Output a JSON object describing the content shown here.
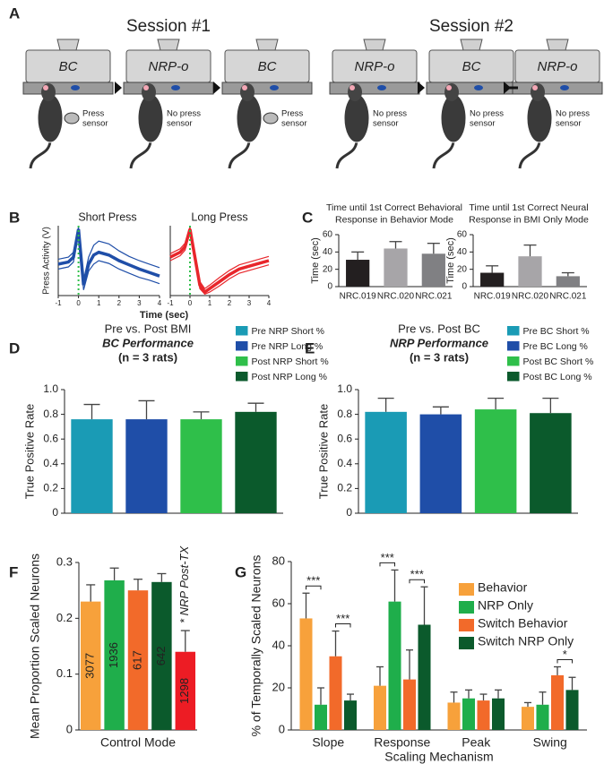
{
  "panel_labels": [
    "A",
    "B",
    "C",
    "D",
    "E",
    "F",
    "G"
  ],
  "panel_a": {
    "sessions": [
      "Session #1",
      "Session #2"
    ],
    "screens": [
      "BC",
      "NRP-o",
      "BC",
      "NRP-o",
      "BC",
      "NRP-o"
    ],
    "sensors": [
      [
        "Press",
        "sensor"
      ],
      [
        "No press",
        "sensor"
      ],
      [
        "Press",
        "sensor"
      ],
      [
        "No press",
        "sensor"
      ],
      [
        "No press",
        "sensor"
      ],
      [
        "No press",
        "sensor"
      ]
    ],
    "has_sensor": [
      true,
      false,
      true,
      false,
      false,
      false
    ]
  },
  "chart_data": [
    {
      "type": "line",
      "title": "Short Press",
      "ylabel": "Press Activity (V)",
      "xlabel": "Time (sec)",
      "x": [
        -1,
        -0.5,
        -0.25,
        0,
        0.25,
        0.5,
        0.75,
        1,
        1.5,
        2,
        2.5,
        3,
        3.5,
        4
      ],
      "xlim": [
        -1,
        4
      ],
      "xticks": [
        -1,
        0,
        1,
        2,
        3,
        4
      ],
      "ylim": [
        0,
        1
      ],
      "vline": 0,
      "vline_color": "#2fbf4a",
      "series": [
        {
          "color": "#1f4ea8",
          "values": [
            0.45,
            0.48,
            0.55,
            0.95,
            0.15,
            0.45,
            0.58,
            0.62,
            0.58,
            0.5,
            0.44,
            0.38,
            0.33,
            0.28
          ],
          "upper": [
            0.52,
            0.55,
            0.62,
            0.98,
            0.22,
            0.55,
            0.72,
            0.78,
            0.74,
            0.64,
            0.56,
            0.5,
            0.45,
            0.4
          ],
          "lower": [
            0.38,
            0.41,
            0.48,
            0.92,
            0.08,
            0.35,
            0.45,
            0.5,
            0.46,
            0.38,
            0.32,
            0.26,
            0.22,
            0.17
          ]
        }
      ]
    },
    {
      "type": "line",
      "title": "Long Press",
      "x": [
        -1,
        -0.5,
        -0.25,
        0,
        0.25,
        0.5,
        0.75,
        1,
        1.5,
        2,
        2.5,
        3,
        3.5,
        4
      ],
      "xlim": [
        -1,
        4
      ],
      "xticks": [
        -1,
        0,
        1,
        2,
        3,
        4
      ],
      "ylim": [
        0,
        1
      ],
      "vline": 0,
      "vline_color": "#2fbf4a",
      "series": [
        {
          "color": "#e8262b",
          "values": [
            0.55,
            0.62,
            0.7,
            0.95,
            0.55,
            0.15,
            0.05,
            0.1,
            0.2,
            0.3,
            0.38,
            0.42,
            0.46,
            0.5
          ],
          "upper": [
            0.6,
            0.67,
            0.75,
            0.98,
            0.6,
            0.2,
            0.1,
            0.15,
            0.26,
            0.36,
            0.44,
            0.48,
            0.52,
            0.56
          ],
          "lower": [
            0.5,
            0.57,
            0.65,
            0.92,
            0.5,
            0.1,
            0.02,
            0.05,
            0.14,
            0.24,
            0.32,
            0.36,
            0.4,
            0.44
          ]
        }
      ]
    },
    {
      "type": "bar",
      "title": [
        "Time until 1st Correct Behavioral",
        "Response in Behavior Mode"
      ],
      "ylabel": "Time (sec)",
      "categories": [
        "NRC.019",
        "NRC.020",
        "NRC.021"
      ],
      "values": [
        31,
        44,
        38
      ],
      "errors": [
        9,
        8,
        12
      ],
      "colors": [
        "#231f20",
        "#a7a5a8",
        "#808083"
      ],
      "ylim": [
        0,
        60
      ],
      "yticks": [
        0,
        20,
        40,
        60
      ]
    },
    {
      "type": "bar",
      "title": [
        "Time until 1st Correct Neural",
        "Response in BMI Only Mode"
      ],
      "ylabel": "Time (sec)",
      "categories": [
        "NRC.019",
        "NRC.020",
        "NRC.021"
      ],
      "values": [
        16,
        35,
        12
      ],
      "errors": [
        8,
        13,
        4
      ],
      "colors": [
        "#231f20",
        "#a7a5a8",
        "#808083"
      ],
      "ylim": [
        0,
        60
      ],
      "yticks": [
        0,
        20,
        40,
        60
      ]
    },
    {
      "type": "bar",
      "title": [
        "Pre vs. Post BMI",
        "BC Performance",
        "(n = 3 rats)"
      ],
      "ylabel": "True Positive Rate",
      "series": [
        {
          "name": "Pre NRP Short %",
          "color": "#1a9bb5",
          "values": [
            0.76
          ],
          "errors": [
            0.12
          ]
        },
        {
          "name": "Pre NRP Long %",
          "color": "#1f4ea8",
          "values": [
            0.76
          ],
          "errors": [
            0.15
          ]
        },
        {
          "name": "Post NRP Short %",
          "color": "#2fbf4a",
          "values": [
            0.76
          ],
          "errors": [
            0.06
          ]
        },
        {
          "name": "Post NRP Long %",
          "color": "#0b5a2c",
          "values": [
            0.82
          ],
          "errors": [
            0.07
          ]
        }
      ],
      "ylim": [
        0,
        1
      ],
      "yticks": [
        0,
        0.2,
        0.4,
        0.6,
        0.8,
        {
          "value": 1,
          "label": "1.0"
        }
      ]
    },
    {
      "type": "bar",
      "title": [
        "Pre vs. Post BC",
        "NRP Performance",
        "(n = 3 rats)"
      ],
      "ylabel": "True Positive Rate",
      "series": [
        {
          "name": "Pre BC Short %",
          "color": "#1a9bb5",
          "values": [
            0.82
          ],
          "errors": [
            0.11
          ]
        },
        {
          "name": "Pre BC Long %",
          "color": "#1f4ea8",
          "values": [
            0.8
          ],
          "errors": [
            0.06
          ]
        },
        {
          "name": "Post BC Short %",
          "color": "#2fbf4a",
          "values": [
            0.84
          ],
          "errors": [
            0.09
          ]
        },
        {
          "name": "Post BC Long %",
          "color": "#0b5a2c",
          "values": [
            0.81
          ],
          "errors": [
            0.12
          ]
        }
      ],
      "ylim": [
        0,
        1
      ],
      "yticks": [
        0,
        0.2,
        0.4,
        0.6,
        0.8,
        {
          "value": 1,
          "label": "1.0"
        }
      ]
    },
    {
      "type": "bar",
      "ylabel": "Mean Proportion Scaled Neurons",
      "xlabel": "Control Mode",
      "values": [
        0.23,
        0.268,
        0.25,
        0.265,
        0.14
      ],
      "errors": [
        0.03,
        0.022,
        0.02,
        0.015,
        0.038
      ],
      "colors": [
        "#f7a13b",
        "#1fae4b",
        "#f26a2a",
        "#0b5a2c",
        "#ed1c24"
      ],
      "counts": [
        3077,
        1936,
        617,
        642,
        1298
      ],
      "annotation": {
        "text": "* NRP Post-TX",
        "index": 4
      },
      "ylim": [
        0,
        0.3
      ],
      "yticks": [
        0,
        0.1,
        0.2,
        0.3
      ]
    },
    {
      "type": "grouped_bar",
      "ylabel": "% of Temporally Scaled Neurons",
      "xlabel": "Scaling Mechanism",
      "categories": [
        "Slope",
        "Response",
        "Peak",
        "Swing"
      ],
      "series": [
        {
          "name": "Behavior",
          "color": "#f7a13b",
          "values": [
            53,
            21,
            13,
            11
          ],
          "errors": [
            12,
            9,
            5,
            2
          ]
        },
        {
          "name": "NRP Only",
          "color": "#1fae4b",
          "values": [
            12,
            61,
            15,
            12
          ],
          "errors": [
            8,
            15,
            4,
            6
          ]
        },
        {
          "name": "Switch Behavior",
          "color": "#f26a2a",
          "values": [
            35,
            24,
            14,
            26
          ],
          "errors": [
            12,
            14,
            3,
            4
          ]
        },
        {
          "name": "Switch NRP Only",
          "color": "#0b5a2c",
          "values": [
            14,
            50,
            15,
            19
          ],
          "errors": [
            3,
            18,
            4,
            6
          ]
        }
      ],
      "significance": [
        {
          "category": 0,
          "pair": [
            0,
            1
          ],
          "label": "***"
        },
        {
          "category": 0,
          "pair": [
            2,
            3
          ],
          "label": "***"
        },
        {
          "category": 1,
          "pair": [
            0,
            1
          ],
          "label": "***"
        },
        {
          "category": 1,
          "pair": [
            2,
            3
          ],
          "label": "***"
        },
        {
          "category": 3,
          "pair": [
            2,
            3
          ],
          "label": "*"
        }
      ],
      "ylim": [
        0,
        80
      ],
      "yticks": [
        0,
        20,
        40,
        60,
        80
      ]
    }
  ]
}
